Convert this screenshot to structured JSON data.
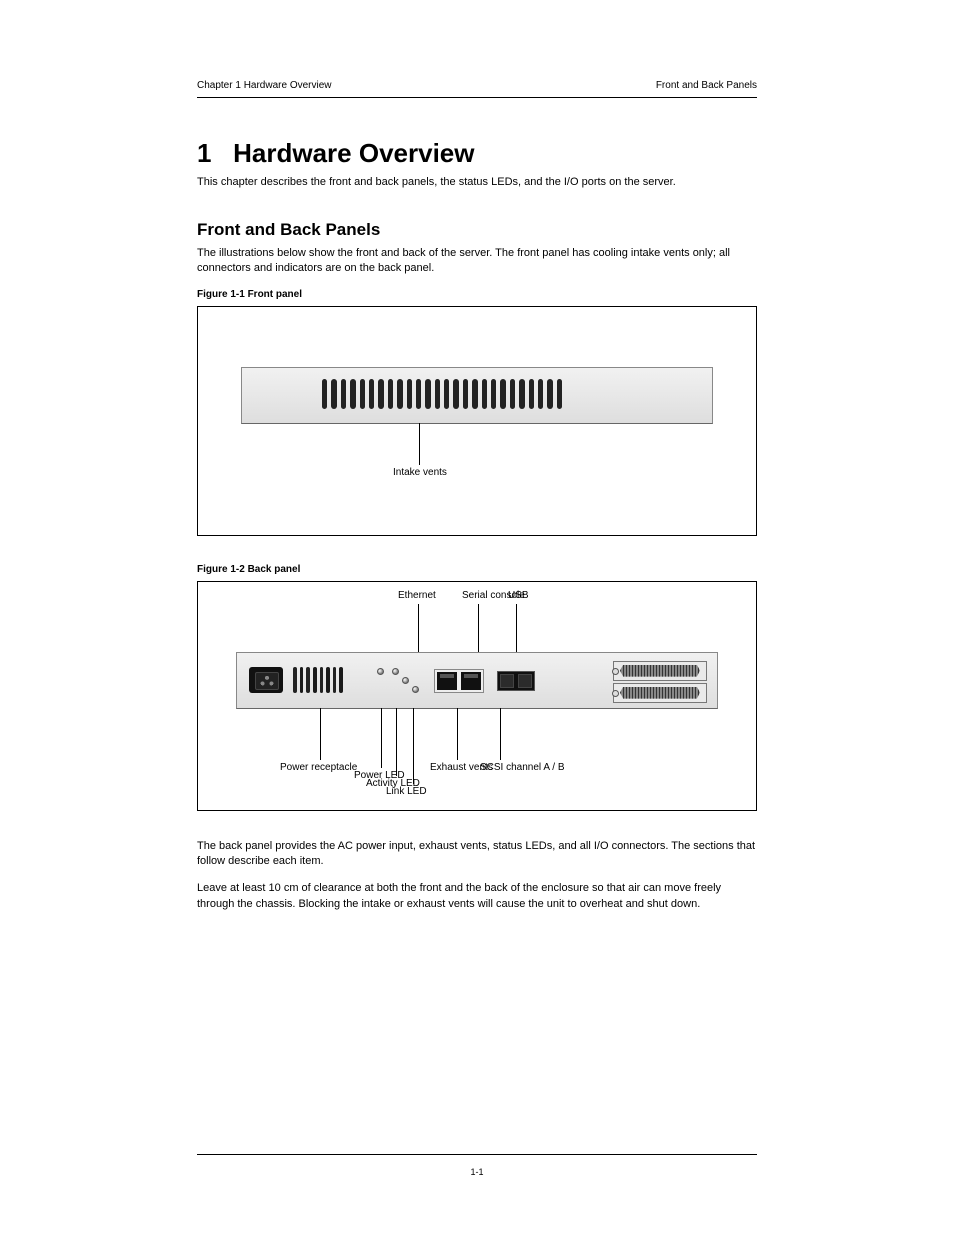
{
  "header": {
    "left": "Chapter 1 Hardware Overview",
    "right": "Front and Back Panels"
  },
  "chapter": {
    "number": "1",
    "title": "Hardware Overview",
    "intro": "This chapter describes the front and back panels, the status LEDs, and the I/O ports on the server."
  },
  "front_back": {
    "title": "Front and Back Panels",
    "body": "The illustrations below show the front and back of the server. The front panel has cooling intake vents only; all connectors and indicators are on the back panel."
  },
  "figure1": {
    "caption": "Figure 1-1  Front panel",
    "vent_label": "Intake vents",
    "vent_count": 26,
    "panel_bg_top": "#f1f1f1",
    "panel_bg_bottom": "#dedede",
    "slot_color": "#222222"
  },
  "figure2": {
    "caption": "Figure 1-2  Back panel",
    "callouts": {
      "power": "Power receptacle",
      "exhaust": "Exhaust vents",
      "power_led": "Power LED",
      "activity_led": "Activity LED",
      "link_led": "Link LED",
      "ethernet": "Ethernet",
      "console": "Serial console",
      "usb": "USB",
      "scsi": "SCSI channel A / B"
    }
  },
  "after_text": {
    "para1": "The back panel provides the AC power input, exhaust vents, status LEDs, and all I/O connectors. The sections that follow describe each item.",
    "para2": "Leave at least 10 cm of clearance at both the front and the back of the enclosure so that air can move freely through the chassis. Blocking the intake or exhaust vents will cause the unit to overheat and shut down."
  },
  "footer": {
    "page": "1-1"
  },
  "colors": {
    "rule": "#000000",
    "text": "#000000"
  }
}
